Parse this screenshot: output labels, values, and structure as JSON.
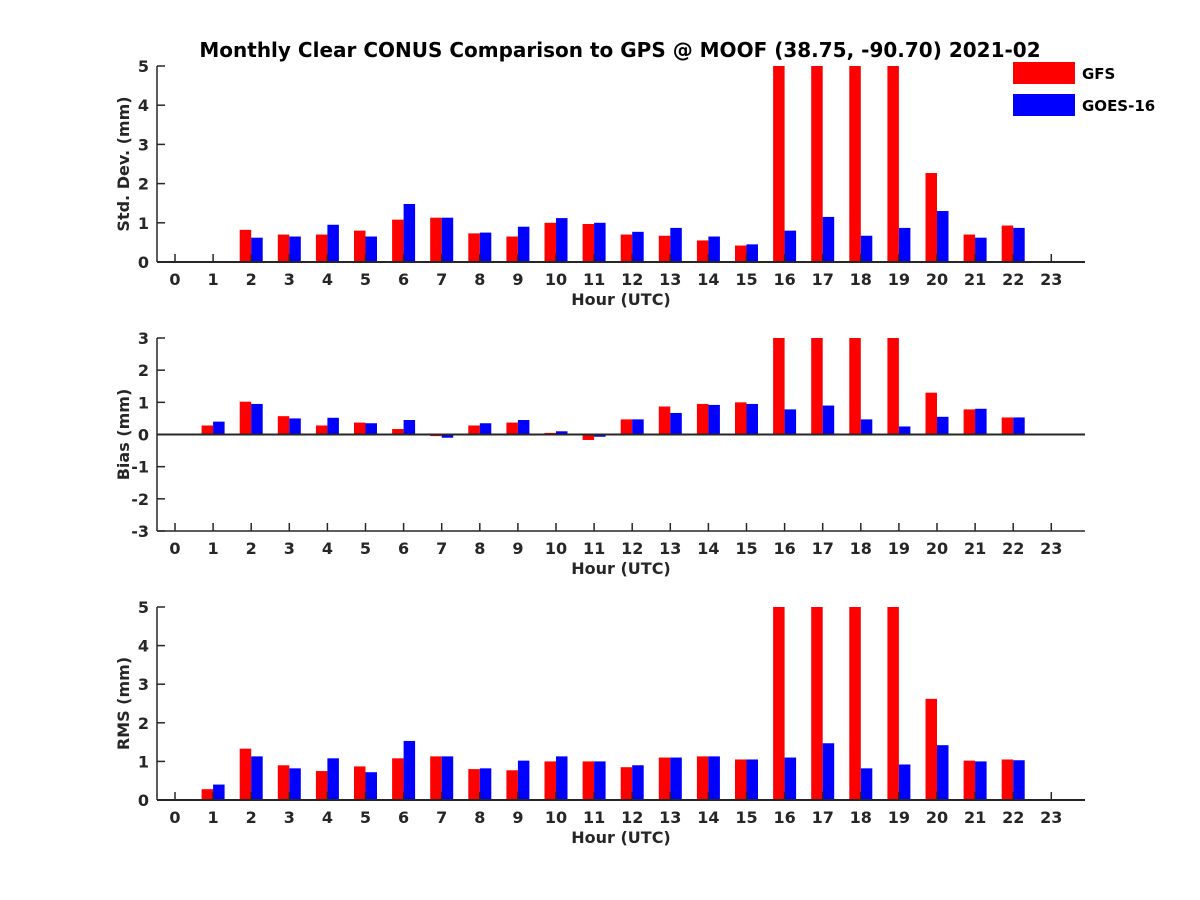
{
  "title": "Monthly Clear CONUS Comparison to GPS @ MOOF (38.75, -90.70) 2021-02",
  "legend": {
    "placement": "top-right",
    "items": [
      {
        "name": "GFS",
        "color": "#ff0000"
      },
      {
        "name": "GOES-16",
        "color": "#0000ff"
      }
    ]
  },
  "chart_data": [
    {
      "type": "bar",
      "xlabel": "Hour (UTC)",
      "ylabel": "Std. Dev. (mm)",
      "ylim": [
        0,
        5
      ],
      "yticks": [
        0,
        1,
        2,
        3,
        4,
        5
      ],
      "categories": [
        "0",
        "1",
        "2",
        "3",
        "4",
        "5",
        "6",
        "7",
        "8",
        "9",
        "10",
        "11",
        "12",
        "13",
        "14",
        "15",
        "16",
        "17",
        "18",
        "19",
        "20",
        "21",
        "22",
        "23"
      ],
      "series": [
        {
          "name": "GFS",
          "color": "#ff0000",
          "values": [
            null,
            null,
            0.82,
            0.7,
            0.7,
            0.8,
            1.08,
            1.13,
            0.73,
            0.65,
            1.0,
            0.97,
            0.7,
            0.67,
            0.55,
            0.42,
            5.0,
            5.0,
            5.0,
            5.0,
            2.27,
            0.7,
            0.93,
            null
          ]
        },
        {
          "name": "GOES-16",
          "color": "#0000ff",
          "values": [
            null,
            null,
            0.62,
            0.65,
            0.95,
            0.65,
            1.48,
            1.13,
            0.75,
            0.9,
            1.12,
            1.0,
            0.77,
            0.87,
            0.65,
            0.45,
            0.8,
            1.15,
            0.67,
            0.87,
            1.3,
            0.62,
            0.87,
            null
          ]
        }
      ]
    },
    {
      "type": "bar",
      "xlabel": "Hour (UTC)",
      "ylabel": "Bias (mm)",
      "ylim": [
        -3,
        3
      ],
      "yticks": [
        -3,
        -2,
        -1,
        0,
        1,
        2,
        3
      ],
      "categories": [
        "0",
        "1",
        "2",
        "3",
        "4",
        "5",
        "6",
        "7",
        "8",
        "9",
        "10",
        "11",
        "12",
        "13",
        "14",
        "15",
        "16",
        "17",
        "18",
        "19",
        "20",
        "21",
        "22",
        "23"
      ],
      "series": [
        {
          "name": "GFS",
          "color": "#ff0000",
          "values": [
            null,
            0.28,
            1.02,
            0.57,
            0.28,
            0.37,
            0.17,
            -0.05,
            0.28,
            0.37,
            0.05,
            -0.17,
            0.47,
            0.87,
            0.95,
            1.0,
            3.0,
            3.0,
            3.0,
            3.0,
            1.3,
            0.78,
            0.53,
            null
          ]
        },
        {
          "name": "GOES-16",
          "color": "#0000ff",
          "values": [
            null,
            0.4,
            0.95,
            0.5,
            0.52,
            0.35,
            0.45,
            -0.1,
            0.35,
            0.45,
            0.1,
            -0.07,
            0.47,
            0.67,
            0.92,
            0.95,
            0.78,
            0.9,
            0.47,
            0.25,
            0.55,
            0.8,
            0.53,
            null
          ]
        }
      ]
    },
    {
      "type": "bar",
      "xlabel": "Hour (UTC)",
      "ylabel": "RMS (mm)",
      "ylim": [
        0,
        5
      ],
      "yticks": [
        0,
        1,
        2,
        3,
        4,
        5
      ],
      "categories": [
        "0",
        "1",
        "2",
        "3",
        "4",
        "5",
        "6",
        "7",
        "8",
        "9",
        "10",
        "11",
        "12",
        "13",
        "14",
        "15",
        "16",
        "17",
        "18",
        "19",
        "20",
        "21",
        "22",
        "23"
      ],
      "series": [
        {
          "name": "GFS",
          "color": "#ff0000",
          "values": [
            null,
            0.28,
            1.33,
            0.9,
            0.75,
            0.87,
            1.08,
            1.13,
            0.8,
            0.77,
            1.0,
            1.0,
            0.85,
            1.1,
            1.13,
            1.05,
            5.0,
            5.0,
            5.0,
            5.0,
            2.62,
            1.02,
            1.05,
            null
          ]
        },
        {
          "name": "GOES-16",
          "color": "#0000ff",
          "values": [
            null,
            0.4,
            1.13,
            0.82,
            1.08,
            0.72,
            1.53,
            1.13,
            0.82,
            1.02,
            1.13,
            1.0,
            0.9,
            1.1,
            1.13,
            1.05,
            1.1,
            1.47,
            0.82,
            0.92,
            1.42,
            1.0,
            1.03,
            null
          ]
        }
      ]
    }
  ]
}
